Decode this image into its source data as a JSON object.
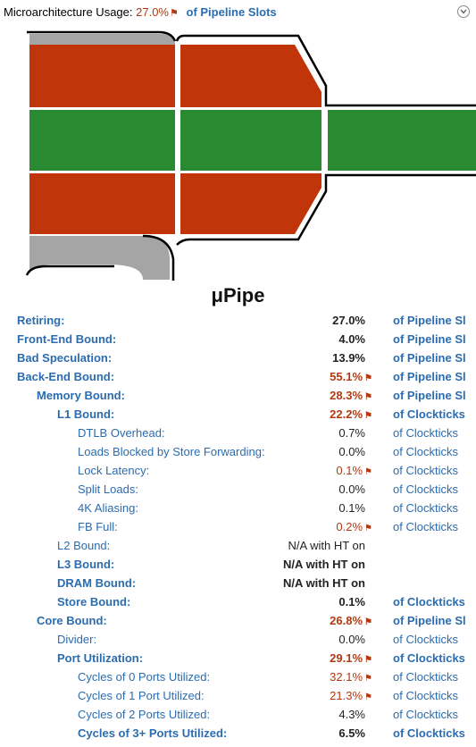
{
  "header": {
    "title": "Microarchitecture Usage:",
    "value": "27.0%",
    "unit": "of Pipeline Slots"
  },
  "diagram_title": "μPipe",
  "colors": {
    "retiring": "#2a8a32",
    "bad": "#c0350a",
    "frontend": "#a5a5a5",
    "label": "#2b6cb0",
    "flag": "#b23a12"
  },
  "metrics": [
    {
      "label": "Retiring:",
      "value": "27.0%",
      "unit": "of Pipeline Sl",
      "level": 0,
      "bold": true,
      "flag": false
    },
    {
      "label": "Front-End Bound:",
      "value": "4.0%",
      "unit": "of Pipeline Sl",
      "level": 0,
      "bold": true,
      "flag": false
    },
    {
      "label": "Bad Speculation:",
      "value": "13.9%",
      "unit": "of Pipeline Sl",
      "level": 0,
      "bold": true,
      "flag": false
    },
    {
      "label": "Back-End Bound:",
      "value": "55.1%",
      "unit": "of Pipeline Sl",
      "level": 0,
      "bold": true,
      "flag": true
    },
    {
      "label": "Memory Bound:",
      "value": "28.3%",
      "unit": "of Pipeline Sl",
      "level": 1,
      "bold": true,
      "flag": true
    },
    {
      "label": "L1 Bound:",
      "value": "22.2%",
      "unit": "of Clockticks",
      "level": 2,
      "bold": true,
      "flag": true
    },
    {
      "label": "DTLB Overhead:",
      "value": "0.7%",
      "unit": "of Clockticks",
      "level": 3,
      "bold": false,
      "flag": false
    },
    {
      "label": "Loads Blocked by Store Forwarding:",
      "value": "0.0%",
      "unit": "of Clockticks",
      "level": 3,
      "bold": false,
      "flag": false
    },
    {
      "label": "Lock Latency:",
      "value": "0.1%",
      "unit": "of Clockticks",
      "level": 3,
      "bold": false,
      "flag": true
    },
    {
      "label": "Split Loads:",
      "value": "0.0%",
      "unit": "of Clockticks",
      "level": 3,
      "bold": false,
      "flag": false
    },
    {
      "label": "4K Aliasing:",
      "value": "0.1%",
      "unit": "of Clockticks",
      "level": 3,
      "bold": false,
      "flag": false
    },
    {
      "label": "FB Full:",
      "value": "0.2%",
      "unit": "of Clockticks",
      "level": 3,
      "bold": false,
      "flag": true
    },
    {
      "label": "L2 Bound:",
      "value": "N/A with HT on",
      "unit": "",
      "level": 2,
      "bold": false,
      "flag": false
    },
    {
      "label": "L3 Bound:",
      "value": "N/A with HT on",
      "unit": "",
      "level": 2,
      "bold": true,
      "flag": false
    },
    {
      "label": "DRAM Bound:",
      "value": "N/A with HT on",
      "unit": "",
      "level": 2,
      "bold": true,
      "flag": false
    },
    {
      "label": "Store Bound:",
      "value": "0.1%",
      "unit": "of Clockticks",
      "level": 2,
      "bold": true,
      "flag": false
    },
    {
      "label": "Core Bound:",
      "value": "26.8%",
      "unit": "of Pipeline Sl",
      "level": 1,
      "bold": true,
      "flag": true
    },
    {
      "label": "Divider:",
      "value": "0.0%",
      "unit": "of Clockticks",
      "level": 2,
      "bold": false,
      "flag": false
    },
    {
      "label": "Port Utilization:",
      "value": "29.1%",
      "unit": "of Clockticks",
      "level": 2,
      "bold": true,
      "flag": true
    },
    {
      "label": "Cycles of 0 Ports Utilized:",
      "value": "32.1%",
      "unit": "of Clockticks",
      "level": 3,
      "bold": false,
      "flag": true
    },
    {
      "label": "Cycles of 1 Port Utilized:",
      "value": "21.3%",
      "unit": "of Clockticks",
      "level": 3,
      "bold": false,
      "flag": true
    },
    {
      "label": "Cycles of 2 Ports Utilized:",
      "value": "4.3%",
      "unit": "of Clockticks",
      "level": 3,
      "bold": false,
      "flag": false
    },
    {
      "label": "Cycles of 3+ Ports Utilized:",
      "value": "6.5%",
      "unit": "of Clockticks",
      "level": 3,
      "bold": true,
      "flag": false
    }
  ]
}
